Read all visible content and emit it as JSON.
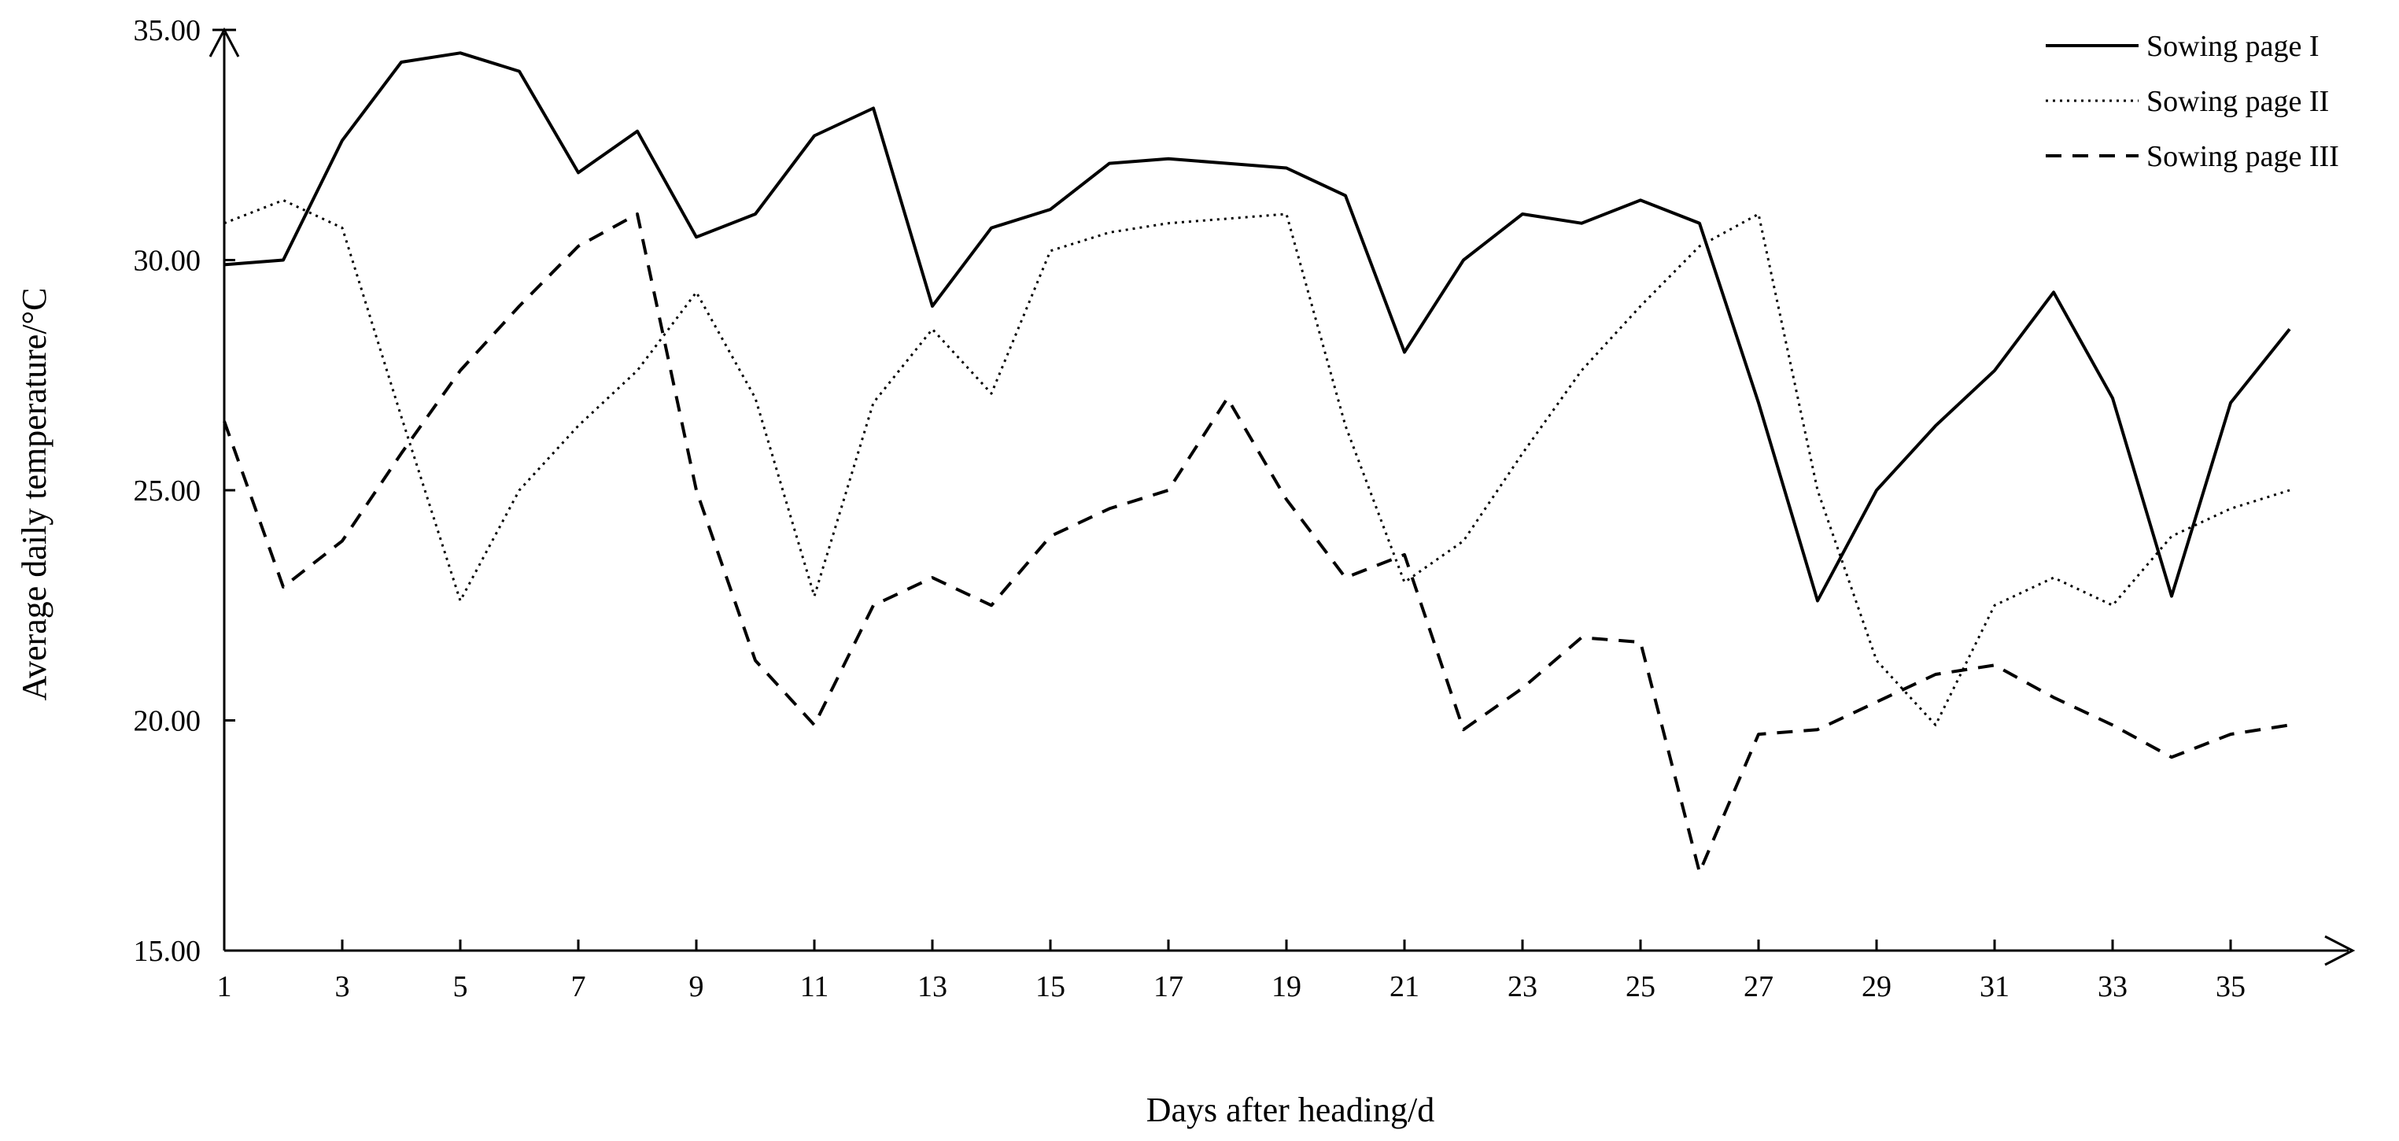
{
  "chart_data": {
    "type": "line",
    "title": "",
    "xlabel": "Days after heading/d",
    "ylabel": "Average daily temperature/°C",
    "xlim": [
      1,
      36
    ],
    "ylim": [
      15,
      35
    ],
    "x": [
      1,
      2,
      3,
      4,
      5,
      6,
      7,
      8,
      9,
      10,
      11,
      12,
      13,
      14,
      15,
      16,
      17,
      18,
      19,
      20,
      21,
      22,
      23,
      24,
      25,
      26,
      27,
      28,
      29,
      30,
      31,
      32,
      33,
      34,
      35,
      36
    ],
    "x_ticks": [
      "1",
      "3",
      "5",
      "7",
      "9",
      "11",
      "13",
      "15",
      "17",
      "19",
      "21",
      "23",
      "25",
      "27",
      "29",
      "31",
      "33",
      "35"
    ],
    "y_ticks": [
      "15.00",
      "20.00",
      "25.00",
      "30.00",
      "35.00"
    ],
    "grid": false,
    "legend_position": "top-right",
    "series": [
      {
        "name": "Sowing page I",
        "style": "solid",
        "values": [
          29.9,
          30.0,
          32.6,
          34.3,
          34.5,
          34.1,
          31.9,
          32.8,
          30.5,
          31.0,
          32.7,
          33.3,
          29.0,
          30.7,
          31.1,
          32.1,
          32.2,
          32.1,
          32.0,
          31.4,
          28.0,
          30.0,
          31.0,
          30.8,
          31.3,
          30.8,
          26.9,
          22.6,
          25.0,
          26.4,
          27.6,
          29.3,
          27.0,
          22.7,
          26.9,
          28.5
        ]
      },
      {
        "name": "Sowing page II",
        "style": "dotted",
        "values": [
          30.8,
          31.3,
          30.7,
          26.6,
          22.6,
          25.0,
          26.4,
          27.6,
          29.3,
          27.0,
          22.7,
          26.9,
          28.5,
          27.1,
          30.2,
          30.6,
          30.8,
          30.9,
          31.0,
          26.4,
          23.0,
          23.9,
          25.8,
          27.6,
          29.0,
          30.3,
          31.0,
          25.0,
          21.3,
          19.9,
          22.5,
          23.1,
          22.5,
          24.0,
          24.6,
          25.0
        ]
      },
      {
        "name": "Sowing page III",
        "style": "dashed",
        "values": [
          26.5,
          22.9,
          23.9,
          25.8,
          27.6,
          29.0,
          30.3,
          31.0,
          25.0,
          21.3,
          19.9,
          22.5,
          23.1,
          22.5,
          24.0,
          24.6,
          25.0,
          27.0,
          24.8,
          23.1,
          23.6,
          19.8,
          20.7,
          21.8,
          21.7,
          16.7,
          19.7,
          19.8,
          20.4,
          21.0,
          21.2,
          20.5,
          19.9,
          19.2,
          19.7,
          19.9
        ]
      }
    ]
  }
}
